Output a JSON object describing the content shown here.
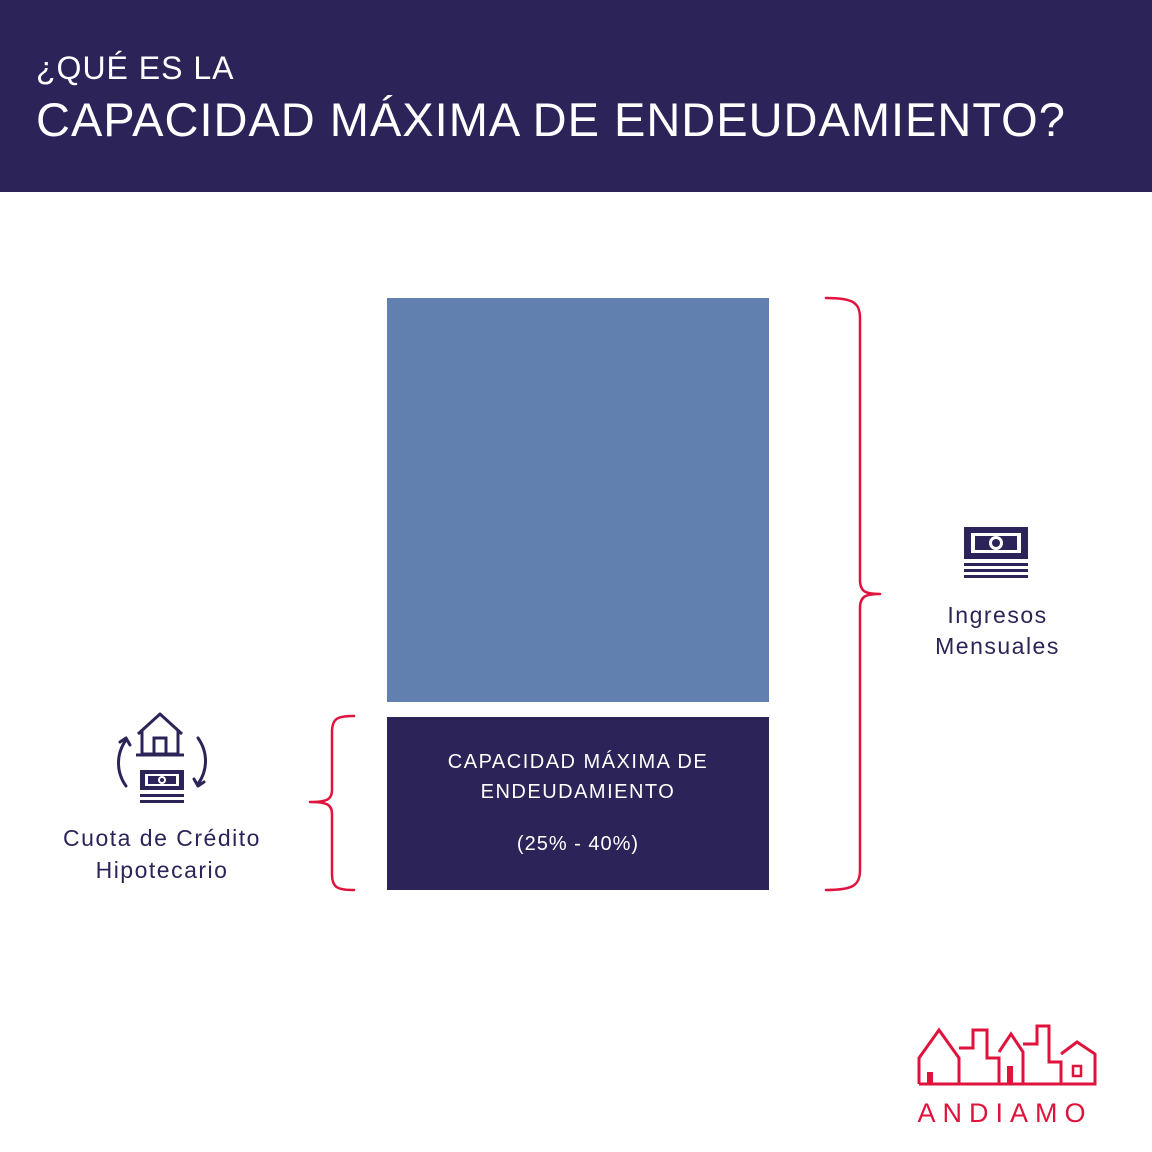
{
  "header": {
    "title_line1": "¿QUÉ ES LA",
    "title_line2": "CAPACIDAD MÁXIMA DE ENDEUDAMIENTO?"
  },
  "diagram": {
    "debt_block": {
      "label": "CAPACIDAD MÁXIMA DE ENDEUDAMIENTO",
      "range": "(25% - 40%)"
    },
    "income_label": [
      "Ingresos",
      "Mensuales"
    ],
    "mortgage_label": [
      "Cuota de Crédito",
      "Hipotecario"
    ],
    "icons": {
      "income": "money-stack-icon",
      "mortgage": "house-money-exchange-icon",
      "brand": "city-skyline-logo"
    }
  },
  "brand": {
    "name": "ANDIAMO"
  },
  "colors": {
    "navy": "#2c2459",
    "blue": "#6180b0",
    "accent_red": "#e0133d",
    "white": "#ffffff"
  }
}
